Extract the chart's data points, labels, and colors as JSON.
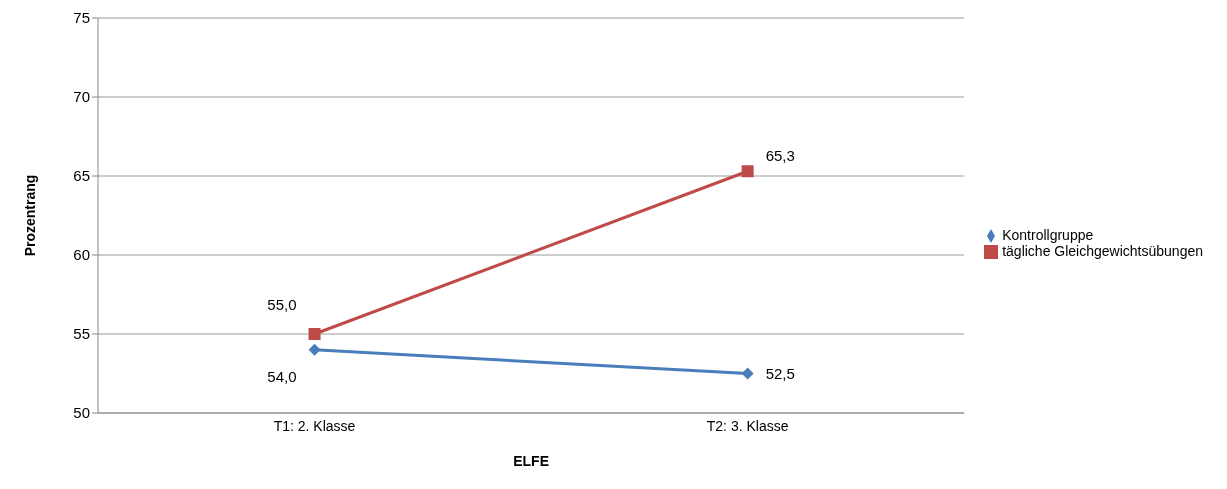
{
  "chart_data": {
    "type": "line",
    "xlabel": "ELFE",
    "ylabel": "Prozentrang",
    "categories": [
      "T1: 2. Klasse",
      "T2: 3. Klasse"
    ],
    "series": [
      {
        "name": "Kontrollgruppe",
        "color": "#4a7ebb",
        "marker": "diamond",
        "values": [
          54.0,
          52.5
        ],
        "value_labels": [
          "54,0",
          "52,5"
        ]
      },
      {
        "name": "tägliche Gleichgewichtsübungen",
        "color": "#be4b48",
        "marker": "square",
        "values": [
          55.0,
          65.3
        ],
        "value_labels": [
          "55,0",
          "65,3"
        ]
      }
    ],
    "ylim": [
      50,
      75
    ],
    "yticks": [
      50,
      55,
      60,
      65,
      70,
      75
    ],
    "grid": "y",
    "legend": "right"
  }
}
